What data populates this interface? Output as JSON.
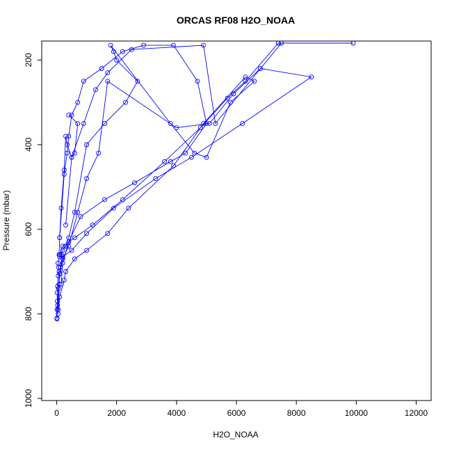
{
  "chart_data": {
    "type": "line",
    "title": "ORCAS RF08 H2O_NOAA",
    "xlabel": "H2O_NOAA",
    "ylabel": "Pressure (mbar)",
    "xlim": [
      -500,
      12500
    ],
    "ylim": [
      1005,
      155
    ],
    "y_inverted": true,
    "grid": false,
    "x_ticks": [
      0,
      2000,
      4000,
      6000,
      8000,
      10000,
      12000
    ],
    "y_ticks": [
      200,
      400,
      600,
      800,
      1000
    ],
    "x_tick_labels": [
      "0",
      "2000",
      "4000",
      "6000",
      "8000",
      "10000",
      "12000"
    ],
    "y_tick_labels": [
      "200",
      "400",
      "600",
      "800",
      "1000"
    ],
    "color": "#0000ff",
    "series": [
      {
        "x": [
          5,
          10,
          20,
          15,
          30,
          50,
          80,
          60,
          40,
          100,
          150,
          200,
          300,
          400,
          600,
          1000,
          1600,
          2300,
          2700,
          2000,
          1900,
          1800,
          3800,
          4600,
          5000,
          5800,
          6600,
          6300,
          4900,
          3900,
          2400,
          1700,
          1000,
          600,
          300,
          250,
          100,
          50
        ],
        "y": [
          812,
          790,
          770,
          750,
          735,
          710,
          700,
          690,
          680,
          665,
          660,
          650,
          640,
          620,
          560,
          400,
          350,
          300,
          250,
          200,
          180,
          165,
          350,
          420,
          430,
          300,
          250,
          240,
          350,
          450,
          550,
          610,
          650,
          670,
          700,
          720,
          760,
          800
        ]
      },
      {
        "x": [
          10,
          30,
          60,
          100,
          200,
          400,
          700,
          1000,
          1400,
          1700,
          4000,
          5100,
          5900,
          6800,
          8500,
          6200,
          4500,
          3300,
          1900,
          1000,
          500,
          200,
          120,
          80,
          50
        ],
        "y": [
          810,
          780,
          740,
          705,
          670,
          640,
          560,
          480,
          420,
          250,
          360,
          350,
          280,
          220,
          240,
          350,
          430,
          480,
          550,
          610,
          650,
          665,
          690,
          730,
          790
        ]
      },
      {
        "x": [
          100,
          250,
          350,
          400,
          500,
          700,
          900,
          1500,
          2200,
          2900,
          3900,
          4700,
          5000,
          4300,
          3800,
          2600,
          1600,
          800,
          400,
          200,
          150
        ],
        "y": [
          620,
          470,
          420,
          380,
          330,
          300,
          250,
          220,
          180,
          165,
          165,
          250,
          350,
          420,
          440,
          490,
          530,
          570,
          630,
          680,
          730
        ]
      },
      {
        "x": [
          300,
          500,
          900,
          1300,
          1700,
          2500,
          4900,
          5300,
          7500,
          9900,
          7400,
          6300,
          5700,
          4800,
          3600,
          2200,
          1200,
          600,
          200,
          100
        ],
        "y": [
          590,
          430,
          350,
          270,
          230,
          175,
          165,
          350,
          160,
          160,
          160,
          250,
          290,
          360,
          440,
          530,
          590,
          620,
          640,
          660
        ]
      },
      {
        "x": [
          400,
          700,
          600,
          500,
          350,
          300,
          250,
          150,
          100,
          80
        ],
        "y": [
          330,
          350,
          420,
          430,
          400,
          380,
          460,
          550,
          620,
          660
        ]
      }
    ]
  }
}
